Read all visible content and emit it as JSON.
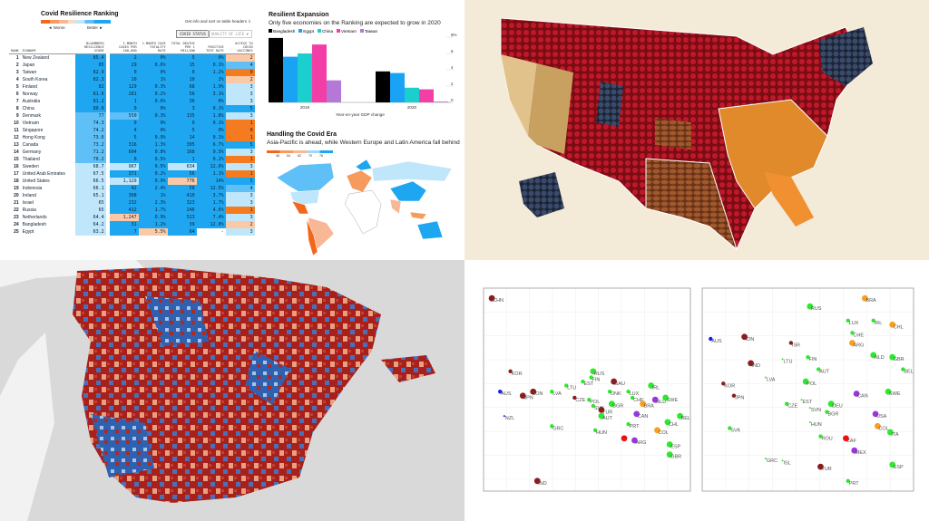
{
  "ranking": {
    "title": "Covid Resilience Ranking",
    "legend_worse": "◄ Worse",
    "legend_better": "Better ►",
    "info": "Get info and sort on table headers ⇓",
    "tabs": [
      "COVID STATUS",
      "QUALITY OF LIFE ▼"
    ],
    "headers": [
      "RANK",
      "ECONOMY",
      "BLOOMBERG RESILIENCE SCORE",
      "1-MONTH CASES PER 100,000",
      "1-MONTH CASE FATALITY RATE",
      "TOTAL DEATHS PER 1 MILLION",
      "POSITIVE TEST RATE",
      "ACCESS TO COVID VACCINES"
    ],
    "colors": {
      "B": "#1ea6f0",
      "b": "#5ec0f6",
      "l": "#bfe6fb",
      "o": "#f47b20",
      "p": "#fcc9a6"
    },
    "rows": [
      {
        "rank": "1",
        "economy": "New Zealand",
        "v": [
          "85.4",
          "2",
          "0%",
          "5",
          "0%",
          "2"
        ],
        "shade": "BBBBBp"
      },
      {
        "rank": "2",
        "economy": "Japan",
        "v": [
          "85",
          "29",
          "0.6%",
          "15",
          "0.1%",
          "4"
        ],
        "shade": "BBBBBb"
      },
      {
        "rank": "3",
        "economy": "Taiwan",
        "v": [
          "82.9",
          "0",
          "0%",
          "0",
          "1.2%",
          "0"
        ],
        "shade": "BBBBBo"
      },
      {
        "rank": "4",
        "economy": "South Korea",
        "v": [
          "82.3",
          "10",
          "1%",
          "10",
          "2%",
          "2"
        ],
        "shade": "BBBBBp"
      },
      {
        "rank": "5",
        "economy": "Finland",
        "v": [
          "82",
          "129",
          "0.3%",
          "68",
          "1.9%",
          "3"
        ],
        "shade": "BBBBBl"
      },
      {
        "rank": "6",
        "economy": "Norway",
        "v": [
          "81.6",
          "281",
          "0.2%",
          "56",
          "3.1%",
          "3"
        ],
        "shade": "BBBBBl"
      },
      {
        "rank": "7",
        "economy": "Australia",
        "v": [
          "81.2",
          "1",
          "0.6%",
          "36",
          "0%",
          "3"
        ],
        "shade": "BBBBBl"
      },
      {
        "rank": "8",
        "economy": "China",
        "v": [
          "80.6",
          "0",
          "0%",
          "3",
          "0.1%",
          "5"
        ],
        "shade": "BBBBBB"
      },
      {
        "rank": "9",
        "economy": "Denmark",
        "v": [
          "77",
          "550",
          "0.3%",
          "135",
          "1.8%",
          "3"
        ],
        "shade": "bbBBBl"
      },
      {
        "rank": "10",
        "economy": "Vietnam",
        "v": [
          "74.3",
          "0",
          "0%",
          "0",
          "0.1%",
          "1"
        ],
        "shade": "bBBBBo"
      },
      {
        "rank": "11",
        "economy": "Singapore",
        "v": [
          "74.2",
          "4",
          "0%",
          "5",
          "0%",
          "0"
        ],
        "shade": "bBBBBo"
      },
      {
        "rank": "12",
        "economy": "Hong Kong",
        "v": [
          "73.6",
          "5",
          "0.9%",
          "14",
          "0.1%",
          "1"
        ],
        "shade": "bBBBBo"
      },
      {
        "rank": "13",
        "economy": "Canada",
        "v": [
          "73.2",
          "316",
          "1.3%",
          "305",
          "6.7%",
          "5"
        ],
        "shade": "bBBBBB"
      },
      {
        "rank": "14",
        "economy": "Germany",
        "v": [
          "71.2",
          "604",
          "0.8%",
          "168",
          "9.5%",
          "3"
        ],
        "shade": "bBBBBl"
      },
      {
        "rank": "15",
        "economy": "Thailand",
        "v": [
          "70.2",
          "0",
          "0.5%",
          "1",
          "0.2%",
          "1"
        ],
        "shade": "bBBBBo"
      },
      {
        "rank": "16",
        "economy": "Sweden",
        "v": [
          "68.7",
          "967",
          "0.5%",
          "634",
          "12.6%",
          "3"
        ],
        "shade": "llBlBl"
      },
      {
        "rank": "17",
        "economy": "United Arab Emirates",
        "v": [
          "67.5",
          "371",
          "0.2%",
          "56",
          "1.1%",
          "1"
        ],
        "shade": "lBBBBo"
      },
      {
        "rank": "18",
        "economy": "United States",
        "v": [
          "66.5",
          "1,129",
          "0.9%",
          "776",
          "14%",
          "5"
        ],
        "shade": "llBpBB"
      },
      {
        "rank": "19",
        "economy": "Indonesia",
        "v": [
          "66.1",
          "42",
          "2.4%",
          "58",
          "12.5%",
          "4"
        ],
        "shade": "lBBBBb"
      },
      {
        "rank": "20",
        "economy": "Ireland",
        "v": [
          "65.1",
          "308",
          "1%",
          "410",
          "3.7%",
          "3"
        ],
        "shade": "lBBBBl"
      },
      {
        "rank": "21",
        "economy": "Israel",
        "v": [
          "65",
          "232",
          "2.3%",
          "323",
          "1.7%",
          "3"
        ],
        "shade": "lBBBBl"
      },
      {
        "rank": "22",
        "economy": "Russia",
        "v": [
          "65",
          "412",
          "1.7%",
          "246",
          "4.6%",
          "1"
        ],
        "shade": "lBBBBo"
      },
      {
        "rank": "23",
        "economy": "Netherlands",
        "v": [
          "64.4",
          "1,247",
          "0.9%",
          "523",
          "7.4%",
          "3"
        ],
        "shade": "lpBBBl"
      },
      {
        "rank": "24",
        "economy": "Bangladesh",
        "v": [
          "64.2",
          "31",
          "1.2%",
          "39",
          "12.8%",
          "2"
        ],
        "shade": "lBBBBp"
      },
      {
        "rank": "25",
        "economy": "Egypt",
        "v": [
          "63.2",
          "7",
          "5.5%",
          "64",
          "-",
          "3"
        ],
        "shade": "lBpBwl"
      }
    ]
  },
  "chart_data": [
    {
      "type": "bar",
      "title": "Resilient Expansion",
      "subtitle": "Only five economies on the Ranking are expected to grow in 2020",
      "categories": [
        "2019",
        "2020"
      ],
      "xlabel": "Year-on-year GDP change",
      "ylabel": "",
      "ylim": [
        0,
        8
      ],
      "yticks": [
        "0",
        "2",
        "4",
        "6",
        "8%"
      ],
      "legend": "top-left",
      "series": [
        {
          "name": "Bangladesh",
          "color": "#000000",
          "values": [
            7.9,
            3.8
          ]
        },
        {
          "name": "Egypt",
          "color": "#1aa3f5",
          "values": [
            5.6,
            3.6
          ]
        },
        {
          "name": "China",
          "color": "#1ccfcf",
          "values": [
            6.0,
            1.8
          ]
        },
        {
          "name": "Vietnam",
          "color": "#f23fa8",
          "values": [
            7.1,
            1.6
          ]
        },
        {
          "name": "Taiwan",
          "color": "#b479d6",
          "values": [
            2.7,
            0.1
          ]
        }
      ]
    },
    {
      "type": "scatter",
      "points": [
        {
          "label": "CHN",
          "x": 0.4,
          "y": 9.5,
          "c": "dr",
          "s": 2
        },
        {
          "label": "KOR",
          "x": 1.3,
          "y": 5.9,
          "c": "dr",
          "s": 1
        },
        {
          "label": "AUS",
          "x": 0.8,
          "y": 4.9,
          "c": "bl",
          "s": 1
        },
        {
          "label": "JPN",
          "x": 1.9,
          "y": 4.7,
          "c": "dr",
          "s": 2
        },
        {
          "label": "ION",
          "x": 2.4,
          "y": 4.9,
          "c": "dr",
          "s": 2
        },
        {
          "label": "NZL",
          "x": 1.0,
          "y": 3.7,
          "c": "bl",
          "s": 0
        },
        {
          "label": "IND",
          "x": 2.6,
          "y": 0.5,
          "c": "dr",
          "s": 2
        },
        {
          "label": "LVA",
          "x": 3.3,
          "y": 4.9,
          "c": "gr",
          "s": 1
        },
        {
          "label": "LTU",
          "x": 4.0,
          "y": 5.2,
          "c": "gr",
          "s": 1
        },
        {
          "label": "CZE",
          "x": 4.4,
          "y": 4.6,
          "c": "dr",
          "s": 1
        },
        {
          "label": "EST",
          "x": 4.8,
          "y": 5.4,
          "c": "gr",
          "s": 1
        },
        {
          "label": "GRC",
          "x": 3.3,
          "y": 3.2,
          "c": "gr",
          "s": 1
        },
        {
          "label": "RUS",
          "x": 5.3,
          "y": 5.9,
          "c": "gr",
          "s": 2
        },
        {
          "label": "FIN",
          "x": 5.2,
          "y": 5.6,
          "c": "gr",
          "s": 1
        },
        {
          "label": "SAU",
          "x": 6.3,
          "y": 5.4,
          "c": "dr",
          "s": 2
        },
        {
          "label": "POL",
          "x": 5.1,
          "y": 4.5,
          "c": "gr",
          "s": 1
        },
        {
          "label": "SVK",
          "x": 5.3,
          "y": 4.2,
          "c": "gr",
          "s": 1
        },
        {
          "label": "DNK",
          "x": 6.1,
          "y": 4.9,
          "c": "gr",
          "s": 1
        },
        {
          "label": "BGR",
          "x": 6.2,
          "y": 4.3,
          "c": "gr",
          "s": 2
        },
        {
          "label": "TUR",
          "x": 5.7,
          "y": 4.0,
          "c": "dr",
          "s": 2
        },
        {
          "label": "AUT",
          "x": 5.7,
          "y": 3.7,
          "c": "gr",
          "s": 2
        },
        {
          "label": "HUN",
          "x": 5.4,
          "y": 3.0,
          "c": "gr",
          "s": 1
        },
        {
          "label": "LUX",
          "x": 7.0,
          "y": 4.9,
          "c": "gr",
          "s": 1
        },
        {
          "label": "CHE",
          "x": 7.2,
          "y": 4.6,
          "c": "gr",
          "s": 1
        },
        {
          "label": "IRL",
          "x": 8.1,
          "y": 5.2,
          "c": "gr",
          "s": 2
        },
        {
          "label": "NLD",
          "x": 8.3,
          "y": 4.5,
          "c": "pu",
          "s": 2
        },
        {
          "label": "SWE",
          "x": 8.8,
          "y": 4.6,
          "c": "gr",
          "s": 2
        },
        {
          "label": "BRA",
          "x": 7.7,
          "y": 4.3,
          "c": "or",
          "s": 2
        },
        {
          "label": "CAN",
          "x": 7.4,
          "y": 3.8,
          "c": "pu",
          "s": 2
        },
        {
          "label": "PRT",
          "x": 7.0,
          "y": 3.3,
          "c": "gr",
          "s": 1
        },
        {
          "label": "",
          "x": 6.8,
          "y": 2.6,
          "c": "rd",
          "s": 2
        },
        {
          "label": "ARG",
          "x": 7.3,
          "y": 2.5,
          "c": "pu",
          "s": 2
        },
        {
          "label": "COL",
          "x": 8.4,
          "y": 3.0,
          "c": "or",
          "s": 2
        },
        {
          "label": "CHL",
          "x": 8.9,
          "y": 3.4,
          "c": "gr",
          "s": 2
        },
        {
          "label": "BEL",
          "x": 9.5,
          "y": 3.7,
          "c": "gr",
          "s": 2
        },
        {
          "label": "ESP",
          "x": 9.0,
          "y": 2.3,
          "c": "gr",
          "s": 2
        },
        {
          "label": "GBR",
          "x": 9.0,
          "y": 1.8,
          "c": "gr",
          "s": 2
        }
      ]
    },
    {
      "type": "scatter",
      "points": [
        {
          "label": "BRA",
          "x": 7.7,
          "y": 9.5,
          "c": "or",
          "s": 2
        },
        {
          "label": "RUS",
          "x": 5.1,
          "y": 9.1,
          "c": "gr",
          "s": 2
        },
        {
          "label": "LUX",
          "x": 6.9,
          "y": 8.4,
          "c": "gr",
          "s": 1
        },
        {
          "label": "IRL",
          "x": 8.1,
          "y": 8.4,
          "c": "gr",
          "s": 1
        },
        {
          "label": "CHL",
          "x": 9.0,
          "y": 8.2,
          "c": "or",
          "s": 2
        },
        {
          "label": "AUS",
          "x": 0.4,
          "y": 7.5,
          "c": "bl",
          "s": 1
        },
        {
          "label": "ION",
          "x": 2.0,
          "y": 7.6,
          "c": "dr",
          "s": 2
        },
        {
          "label": "ISR",
          "x": 4.2,
          "y": 7.3,
          "c": "dr",
          "s": 1
        },
        {
          "label": "CHE",
          "x": 7.1,
          "y": 7.8,
          "c": "gr",
          "s": 1
        },
        {
          "label": "ARG",
          "x": 7.1,
          "y": 7.3,
          "c": "or",
          "s": 2
        },
        {
          "label": "LTU",
          "x": 3.8,
          "y": 6.5,
          "c": "gr",
          "s": 0
        },
        {
          "label": "FIN",
          "x": 5.0,
          "y": 6.6,
          "c": "gr",
          "s": 1
        },
        {
          "label": "NLD",
          "x": 8.1,
          "y": 6.7,
          "c": "gr",
          "s": 2
        },
        {
          "label": "GBR",
          "x": 9.0,
          "y": 6.6,
          "c": "gr",
          "s": 2
        },
        {
          "label": "IND",
          "x": 2.3,
          "y": 6.3,
          "c": "dr",
          "s": 2
        },
        {
          "label": "AUT",
          "x": 5.5,
          "y": 6.0,
          "c": "gr",
          "s": 1
        },
        {
          "label": "BEL",
          "x": 9.5,
          "y": 6.0,
          "c": "gr",
          "s": 1
        },
        {
          "label": "LVA",
          "x": 3.0,
          "y": 5.6,
          "c": "gr",
          "s": 0
        },
        {
          "label": "KOR",
          "x": 1.0,
          "y": 5.3,
          "c": "dr",
          "s": 1
        },
        {
          "label": "POL",
          "x": 4.9,
          "y": 5.4,
          "c": "gr",
          "s": 2
        },
        {
          "label": "JPN",
          "x": 1.5,
          "y": 4.7,
          "c": "dr",
          "s": 1
        },
        {
          "label": "CAN",
          "x": 7.3,
          "y": 4.8,
          "c": "pu",
          "s": 2
        },
        {
          "label": "SWE",
          "x": 8.8,
          "y": 4.9,
          "c": "gr",
          "s": 2
        },
        {
          "label": "EST",
          "x": 4.7,
          "y": 4.5,
          "c": "gr",
          "s": 0
        },
        {
          "label": "CZE",
          "x": 4.0,
          "y": 4.3,
          "c": "gr",
          "s": 1
        },
        {
          "label": "DEU",
          "x": 6.1,
          "y": 4.3,
          "c": "gr",
          "s": 2
        },
        {
          "label": "SVN",
          "x": 5.1,
          "y": 4.1,
          "c": "gr",
          "s": 0
        },
        {
          "label": "BGR",
          "x": 5.9,
          "y": 3.9,
          "c": "gr",
          "s": 1
        },
        {
          "label": "USA",
          "x": 8.2,
          "y": 3.8,
          "c": "pu",
          "s": 2
        },
        {
          "label": "HUN",
          "x": 5.1,
          "y": 3.4,
          "c": "gr",
          "s": 0
        },
        {
          "label": "COL",
          "x": 8.3,
          "y": 3.2,
          "c": "or",
          "s": 2
        },
        {
          "label": "ITA",
          "x": 8.9,
          "y": 2.9,
          "c": "gr",
          "s": 2
        },
        {
          "label": "SVK",
          "x": 1.3,
          "y": 3.1,
          "c": "gr",
          "s": 1
        },
        {
          "label": "ROU",
          "x": 5.6,
          "y": 2.7,
          "c": "gr",
          "s": 1
        },
        {
          "label": "ZAF",
          "x": 6.8,
          "y": 2.6,
          "c": "rd",
          "s": 2
        },
        {
          "label": "MEX",
          "x": 7.2,
          "y": 2.0,
          "c": "pu",
          "s": 2
        },
        {
          "label": "GRC",
          "x": 3.0,
          "y": 1.6,
          "c": "gr",
          "s": 0
        },
        {
          "label": "ISL",
          "x": 3.8,
          "y": 1.5,
          "c": "gr",
          "s": 0
        },
        {
          "label": "TUR",
          "x": 5.6,
          "y": 1.2,
          "c": "dr",
          "s": 2
        },
        {
          "label": "ESP",
          "x": 9.0,
          "y": 1.3,
          "c": "gr",
          "s": 2
        },
        {
          "label": "PRT",
          "x": 6.9,
          "y": 0.5,
          "c": "gr",
          "s": 1
        }
      ]
    }
  ],
  "scatter_colors": {
    "dr": "#8b1c1c",
    "gr": "#2ee82e",
    "or": "#f5a020",
    "pu": "#9a36e0",
    "bl": "#1a1aee",
    "rd": "#ee1111"
  },
  "worldmap": {
    "title": "Handling the Covid Era",
    "subtitle": "Asia-Pacific is ahead, while Western Europe and Latin America fall behind",
    "legend": [
      "46",
      "54",
      "62",
      "70",
      "78"
    ]
  }
}
